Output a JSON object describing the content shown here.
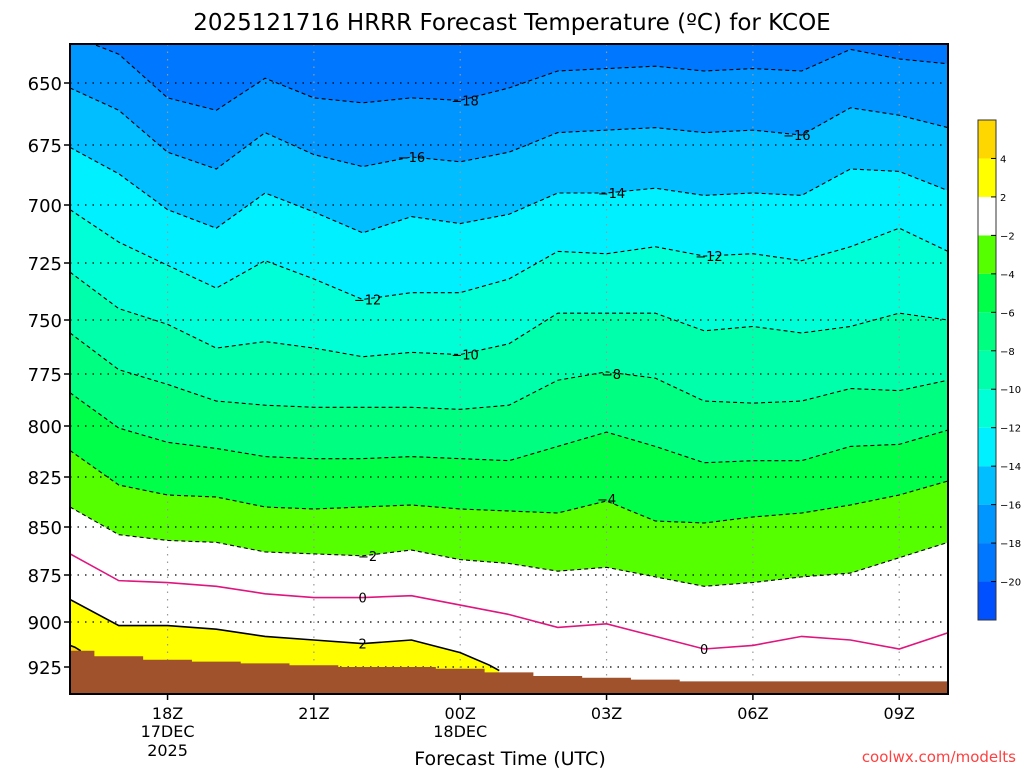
{
  "chart_data": {
    "type": "contour",
    "title": "2025121716 HRRR Forecast Temperature (ºC) for KCOE",
    "xlabel": "Forecast Time (UTC)",
    "ylabel": "",
    "credit": "coolwx.com/modelts",
    "x_units": "forecast hour from 16Z 17DEC2025",
    "xlim": [
      0,
      18
    ],
    "ylim": [
      634,
      940
    ],
    "y_ticks": [
      650,
      675,
      700,
      725,
      750,
      775,
      800,
      825,
      850,
      875,
      900,
      925
    ],
    "x_ticks": [
      {
        "hour": 2,
        "label": "18Z",
        "sub1": "17DEC",
        "sub2": "2025"
      },
      {
        "hour": 5,
        "label": "21Z",
        "sub1": "",
        "sub2": ""
      },
      {
        "hour": 8,
        "label": "00Z",
        "sub1": "18DEC",
        "sub2": ""
      },
      {
        "hour": 11,
        "label": "03Z",
        "sub1": "",
        "sub2": ""
      },
      {
        "hour": 14,
        "label": "06Z",
        "sub1": "",
        "sub2": ""
      },
      {
        "hour": 17,
        "label": "09Z",
        "sub1": "",
        "sub2": ""
      }
    ],
    "colorbar": {
      "bands": [
        {
          "range": "< -20",
          "color": "#0050ff"
        },
        {
          "range": "-20 to -18",
          "color": "#0077ff"
        },
        {
          "range": "-18 to -16",
          "color": "#0096ff"
        },
        {
          "range": "-16 to -14",
          "color": "#00beff"
        },
        {
          "range": "-14 to -12",
          "color": "#00f0ff"
        },
        {
          "range": "-12 to -10",
          "color": "#00ffd6"
        },
        {
          "range": "-10 to -8",
          "color": "#00ffaa"
        },
        {
          "range": "-8 to -6",
          "color": "#00ff80"
        },
        {
          "range": "-6 to -4",
          "color": "#00ff48"
        },
        {
          "range": "-4 to -2",
          "color": "#55ff00"
        },
        {
          "range": "-2 to 2",
          "color": "#ffffff"
        },
        {
          "range": "2 to 4",
          "color": "#ffff00"
        },
        {
          "range": "> 4",
          "color": "#ffd700"
        }
      ],
      "labels": [
        "-20",
        "-18",
        "-16",
        "-14",
        "-12",
        "-10",
        "-8",
        "-6",
        "-4",
        "-2",
        "2",
        "4"
      ]
    },
    "contours": [
      {
        "value": -18,
        "style": "dashed",
        "color": "#000000",
        "fill_below": "#0096ff",
        "points": [
          [
            0,
            630
          ],
          [
            1,
            638
          ],
          [
            2,
            656
          ],
          [
            3,
            661
          ],
          [
            4,
            648
          ],
          [
            5,
            656
          ],
          [
            6,
            658
          ],
          [
            7,
            656
          ],
          [
            8,
            657
          ],
          [
            9,
            652
          ],
          [
            10,
            645
          ],
          [
            11,
            644
          ],
          [
            12,
            643
          ],
          [
            13,
            645
          ],
          [
            14,
            644
          ],
          [
            15,
            645
          ],
          [
            16,
            636
          ],
          [
            17,
            640
          ],
          [
            18,
            642
          ]
        ]
      },
      {
        "value": -16,
        "style": "dashed",
        "color": "#000000",
        "fill_below": "#00beff",
        "points": [
          [
            0,
            652
          ],
          [
            1,
            661
          ],
          [
            2,
            678
          ],
          [
            3,
            685
          ],
          [
            4,
            670
          ],
          [
            5,
            679
          ],
          [
            6,
            684
          ],
          [
            7,
            680
          ],
          [
            8,
            682
          ],
          [
            9,
            678
          ],
          [
            10,
            670
          ],
          [
            11,
            669
          ],
          [
            12,
            668
          ],
          [
            13,
            670
          ],
          [
            14,
            669
          ],
          [
            15,
            671
          ],
          [
            16,
            660
          ],
          [
            17,
            663
          ],
          [
            18,
            668
          ]
        ]
      },
      {
        "value": -14,
        "style": "dashed",
        "color": "#000000",
        "fill_below": "#00f0ff",
        "points": [
          [
            0,
            676
          ],
          [
            1,
            687
          ],
          [
            2,
            702
          ],
          [
            3,
            710
          ],
          [
            4,
            695
          ],
          [
            5,
            703
          ],
          [
            6,
            712
          ],
          [
            7,
            705
          ],
          [
            8,
            708
          ],
          [
            9,
            704
          ],
          [
            10,
            695
          ],
          [
            11,
            695
          ],
          [
            12,
            693
          ],
          [
            13,
            696
          ],
          [
            14,
            695
          ],
          [
            15,
            696
          ],
          [
            16,
            685
          ],
          [
            17,
            686
          ],
          [
            18,
            694
          ]
        ]
      },
      {
        "value": -12,
        "style": "dashed",
        "color": "#000000",
        "fill_below": "#00ffd6",
        "points": [
          [
            0,
            702
          ],
          [
            1,
            716
          ],
          [
            2,
            726
          ],
          [
            3,
            736
          ],
          [
            4,
            724
          ],
          [
            5,
            732
          ],
          [
            6,
            741
          ],
          [
            7,
            738
          ],
          [
            8,
            738
          ],
          [
            9,
            732
          ],
          [
            10,
            720
          ],
          [
            11,
            721
          ],
          [
            12,
            718
          ],
          [
            13,
            722
          ],
          [
            14,
            721
          ],
          [
            15,
            724
          ],
          [
            16,
            718
          ],
          [
            17,
            710
          ],
          [
            18,
            720
          ]
        ]
      },
      {
        "value": -10,
        "style": "dashed",
        "color": "#000000",
        "fill_below": "#00ffaa",
        "points": [
          [
            0,
            729
          ],
          [
            1,
            745
          ],
          [
            2,
            752
          ],
          [
            3,
            763
          ],
          [
            4,
            760
          ],
          [
            5,
            763
          ],
          [
            6,
            767
          ],
          [
            7,
            765
          ],
          [
            8,
            766
          ],
          [
            9,
            761
          ],
          [
            10,
            747
          ],
          [
            11,
            747
          ],
          [
            12,
            747
          ],
          [
            13,
            755
          ],
          [
            14,
            753
          ],
          [
            15,
            756
          ],
          [
            16,
            753
          ],
          [
            17,
            747
          ],
          [
            18,
            750
          ]
        ]
      },
      {
        "value": -8,
        "style": "dashed",
        "color": "#000000",
        "fill_below": "#00ff80",
        "points": [
          [
            0,
            756
          ],
          [
            1,
            773
          ],
          [
            2,
            780
          ],
          [
            3,
            788
          ],
          [
            4,
            790
          ],
          [
            5,
            791
          ],
          [
            6,
            791
          ],
          [
            7,
            791
          ],
          [
            8,
            792
          ],
          [
            9,
            790
          ],
          [
            10,
            778
          ],
          [
            11,
            774
          ],
          [
            12,
            777
          ],
          [
            13,
            788
          ],
          [
            14,
            789
          ],
          [
            15,
            788
          ],
          [
            16,
            782
          ],
          [
            17,
            783
          ],
          [
            18,
            778
          ]
        ]
      },
      {
        "value": -6,
        "style": "dashed",
        "color": "#000000",
        "fill_below": "#00ff48",
        "points": [
          [
            0,
            784
          ],
          [
            1,
            801
          ],
          [
            2,
            808
          ],
          [
            3,
            811
          ],
          [
            4,
            815
          ],
          [
            5,
            816
          ],
          [
            6,
            816
          ],
          [
            7,
            815
          ],
          [
            8,
            816
          ],
          [
            9,
            817
          ],
          [
            10,
            810
          ],
          [
            11,
            803
          ],
          [
            12,
            810
          ],
          [
            13,
            818
          ],
          [
            14,
            817
          ],
          [
            15,
            817
          ],
          [
            16,
            810
          ],
          [
            17,
            809
          ],
          [
            18,
            802
          ]
        ]
      },
      {
        "value": -4,
        "style": "dashed",
        "color": "#000000",
        "fill_below": "#55ff00",
        "points": [
          [
            0,
            812
          ],
          [
            1,
            829
          ],
          [
            2,
            834
          ],
          [
            3,
            835
          ],
          [
            4,
            840
          ],
          [
            5,
            841
          ],
          [
            6,
            840
          ],
          [
            7,
            839
          ],
          [
            8,
            841
          ],
          [
            9,
            842
          ],
          [
            10,
            843
          ],
          [
            11,
            837
          ],
          [
            12,
            847
          ],
          [
            13,
            848
          ],
          [
            14,
            845
          ],
          [
            15,
            843
          ],
          [
            16,
            839
          ],
          [
            17,
            834
          ],
          [
            18,
            827
          ]
        ]
      },
      {
        "value": -2,
        "style": "dashed",
        "color": "#000000",
        "fill_below": "#ffffff",
        "points": [
          [
            0,
            840
          ],
          [
            1,
            854
          ],
          [
            2,
            857
          ],
          [
            3,
            858
          ],
          [
            4,
            863
          ],
          [
            5,
            864
          ],
          [
            6,
            865
          ],
          [
            7,
            862
          ],
          [
            8,
            867
          ],
          [
            9,
            869
          ],
          [
            10,
            873
          ],
          [
            11,
            871
          ],
          [
            12,
            876
          ],
          [
            13,
            881
          ],
          [
            14,
            879
          ],
          [
            15,
            876
          ],
          [
            16,
            874
          ],
          [
            17,
            866
          ],
          [
            18,
            858
          ]
        ]
      },
      {
        "value": 0,
        "style": "solid",
        "color": "#e0157f",
        "fill_below": null,
        "points": [
          [
            0,
            864
          ],
          [
            1,
            878
          ],
          [
            2,
            879
          ],
          [
            3,
            881
          ],
          [
            4,
            885
          ],
          [
            5,
            887
          ],
          [
            6,
            887
          ],
          [
            7,
            886
          ],
          [
            8,
            891
          ],
          [
            9,
            896
          ],
          [
            10,
            903
          ],
          [
            11,
            901
          ],
          [
            12,
            908
          ],
          [
            13,
            915
          ],
          [
            14,
            913
          ],
          [
            15,
            908
          ],
          [
            16,
            910
          ],
          [
            17,
            915
          ],
          [
            18,
            906
          ]
        ]
      },
      {
        "value": 2,
        "style": "solid",
        "color": "#000000",
        "fill_below": "#ffff00",
        "points": [
          [
            0,
            888
          ],
          [
            1,
            902
          ],
          [
            2,
            902
          ],
          [
            3,
            904
          ],
          [
            4,
            908
          ],
          [
            5,
            910
          ],
          [
            6,
            912
          ],
          [
            7,
            910
          ],
          [
            8,
            917
          ],
          [
            8.6,
            924
          ],
          [
            8.8,
            927
          ]
        ]
      },
      {
        "value": 4,
        "style": "solid",
        "color": "#000000",
        "fill_below": "#ffd700",
        "points": [
          [
            0,
            913
          ],
          [
            0.1,
            914
          ],
          [
            0.22,
            916
          ]
        ]
      }
    ],
    "contour_labels": [
      {
        "text": "-18",
        "hour": 8.1,
        "p": 657
      },
      {
        "text": "-16",
        "hour": 7.0,
        "p": 680
      },
      {
        "text": "-16",
        "hour": 14.9,
        "p": 671
      },
      {
        "text": "-14",
        "hour": 11.1,
        "p": 695
      },
      {
        "text": "-12",
        "hour": 6.1,
        "p": 741
      },
      {
        "text": "-12",
        "hour": 13.1,
        "p": 722
      },
      {
        "text": "-10",
        "hour": 8.1,
        "p": 766
      },
      {
        "text": "-8",
        "hour": 11.1,
        "p": 775
      },
      {
        "text": "-4",
        "hour": 11.0,
        "p": 836
      },
      {
        "text": "-2",
        "hour": 6.1,
        "p": 865
      },
      {
        "text": "0",
        "hour": 6.0,
        "p": 887
      },
      {
        "text": "0",
        "hour": 13.0,
        "p": 915
      },
      {
        "text": "2",
        "hour": 6.0,
        "p": 912
      }
    ],
    "top_fill_color": "#0077ff",
    "surface_pressure": {
      "color": "#a0522d",
      "values": [
        916,
        919,
        921,
        922,
        923,
        924,
        925,
        925,
        926,
        928,
        930,
        931,
        932,
        933,
        933,
        933,
        933,
        933,
        933
      ]
    },
    "grid": true
  }
}
